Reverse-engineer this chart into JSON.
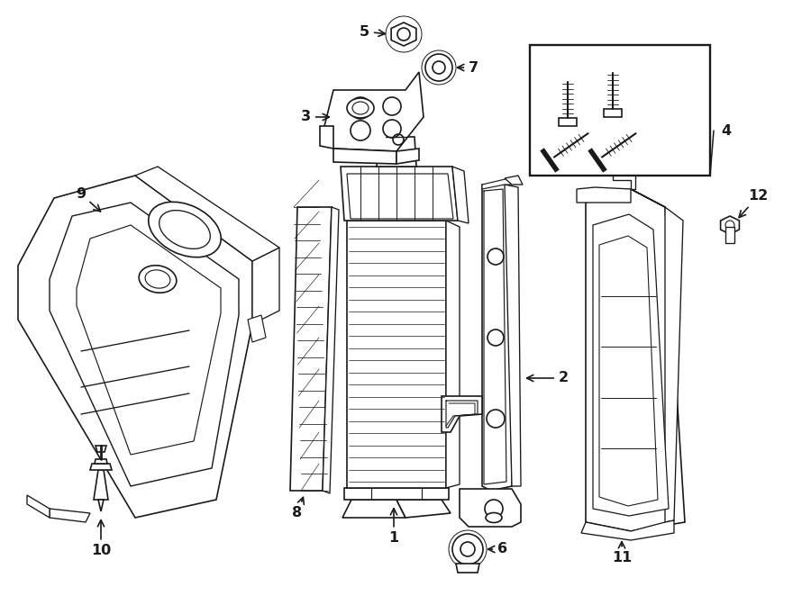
{
  "bg_color": "#ffffff",
  "line_color": "#1a1a1a",
  "fig_width": 9.0,
  "fig_height": 6.62,
  "dpi": 100,
  "label_fontsize": 11.5
}
